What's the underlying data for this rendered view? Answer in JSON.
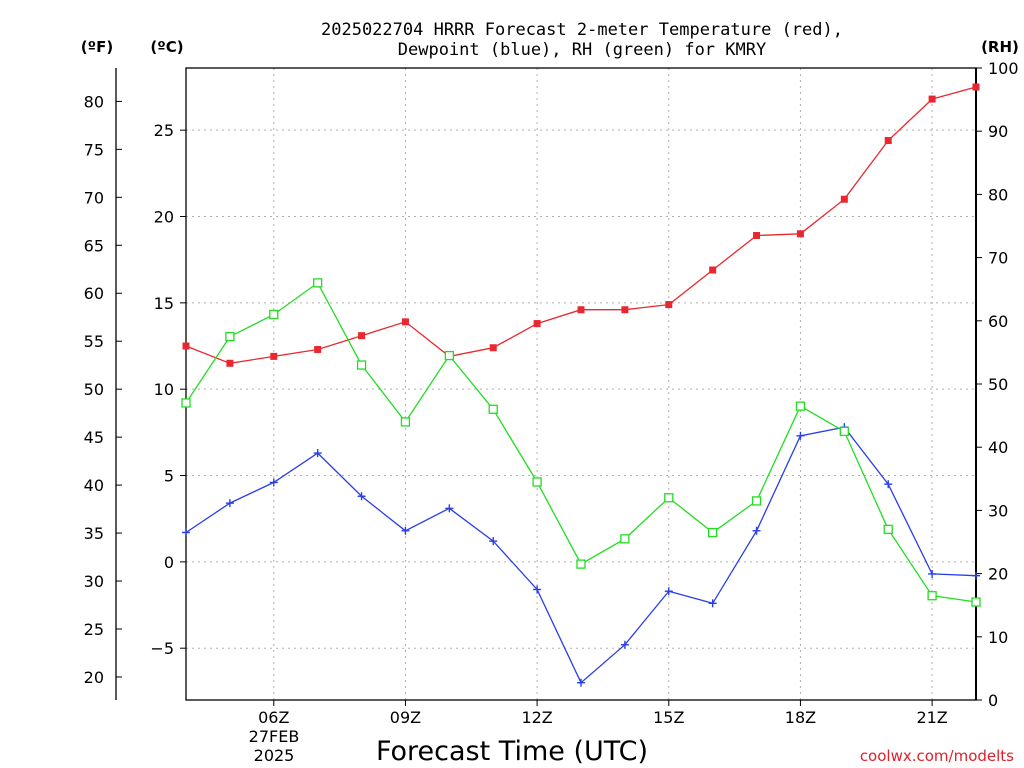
{
  "title": {
    "line1": "2025022704 HRRR Forecast 2-meter Temperature (red),",
    "line2": "Dewpoint (blue), RH (green) for KMRY"
  },
  "units": {
    "fahrenheit": "(ºF)",
    "celsius": "(ºC)",
    "rh": "(RH)"
  },
  "xlabel": "Forecast Time (UTC)",
  "credit": "coolwx.com/modelts",
  "date_label": {
    "day": "27FEB",
    "year": "2025"
  },
  "colors": {
    "temperature": "#e8282e",
    "dewpoint": "#2a3ee8",
    "rh": "#22dd22",
    "grid": "#b0b0b0"
  },
  "chart_data": {
    "type": "line",
    "x_hours_utc": [
      4,
      5,
      6,
      7,
      8,
      9,
      10,
      11,
      12,
      13,
      14,
      15,
      16,
      17,
      18,
      19,
      20,
      21,
      22
    ],
    "x_ticks": [
      {
        "hour": 6,
        "label": "06Z"
      },
      {
        "hour": 9,
        "label": "09Z"
      },
      {
        "hour": 12,
        "label": "12Z"
      },
      {
        "hour": 15,
        "label": "15Z"
      },
      {
        "hour": 18,
        "label": "18Z"
      },
      {
        "hour": 21,
        "label": "21Z"
      }
    ],
    "xlim": [
      4,
      22
    ],
    "celsius_axis": {
      "ylim": [
        -8,
        28.6
      ],
      "ticks": [
        -5,
        0,
        5,
        10,
        15,
        20,
        25
      ]
    },
    "fahrenheit_axis": {
      "ticks": [
        20,
        25,
        30,
        35,
        40,
        45,
        50,
        55,
        60,
        65,
        70,
        75,
        80
      ]
    },
    "rh_axis": {
      "ylim": [
        0,
        100
      ],
      "ticks": [
        0,
        10,
        20,
        30,
        40,
        50,
        60,
        70,
        80,
        90,
        100
      ]
    },
    "grid": true,
    "series": [
      {
        "name": "Temperature",
        "axis": "celsius",
        "marker": "filled-square",
        "values": [
          12.5,
          11.5,
          11.9,
          12.3,
          13.1,
          13.9,
          11.9,
          12.4,
          13.8,
          14.6,
          14.6,
          14.9,
          16.9,
          18.9,
          19.0,
          21.0,
          24.4,
          26.8,
          27.5
        ]
      },
      {
        "name": "Dewpoint",
        "axis": "celsius",
        "marker": "plus",
        "values": [
          1.7,
          3.4,
          4.6,
          6.3,
          3.8,
          1.8,
          3.1,
          1.2,
          -1.6,
          -7.0,
          -4.8,
          -1.7,
          -2.4,
          1.8,
          7.3,
          7.8,
          4.5,
          -0.7,
          -0.8
        ]
      },
      {
        "name": "RH",
        "axis": "rh",
        "marker": "open-square",
        "values": [
          47,
          57.5,
          61,
          66,
          53,
          44,
          54.5,
          46,
          34.5,
          21.5,
          25.5,
          32,
          26.5,
          31.5,
          46.5,
          42.5,
          27,
          16.5,
          15.5
        ]
      }
    ]
  }
}
